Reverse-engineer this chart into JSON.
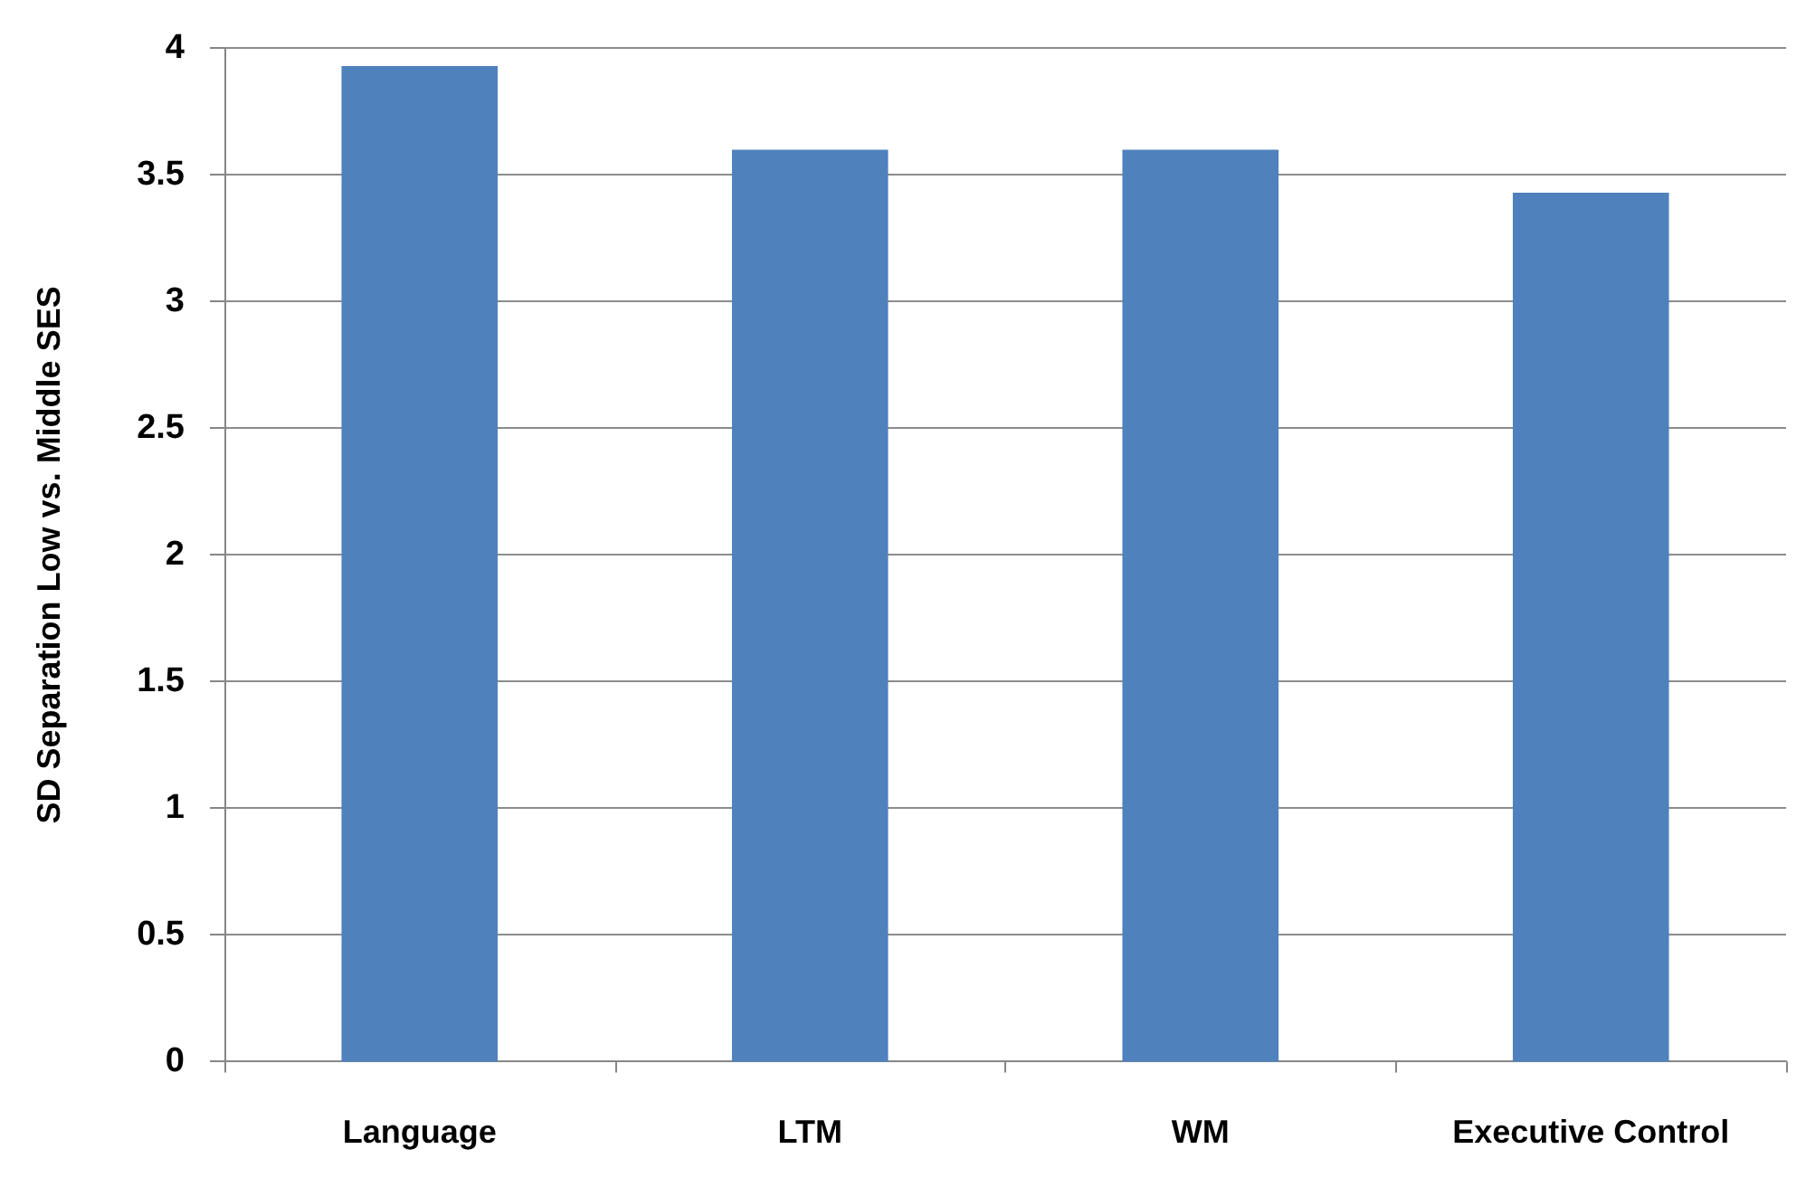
{
  "chart_data": {
    "type": "bar",
    "ylabel": "SD Separation Low vs. Middle SES",
    "categories": [
      "Language",
      "LTM",
      "WM",
      "Executive Control"
    ],
    "values": [
      3.93,
      3.6,
      3.6,
      3.43
    ],
    "color": "#4f81bd",
    "ylim": [
      0,
      4
    ],
    "yticks": [
      0,
      0.5,
      1,
      1.5,
      2,
      2.5,
      3,
      3.5,
      4
    ],
    "grid": "y"
  }
}
